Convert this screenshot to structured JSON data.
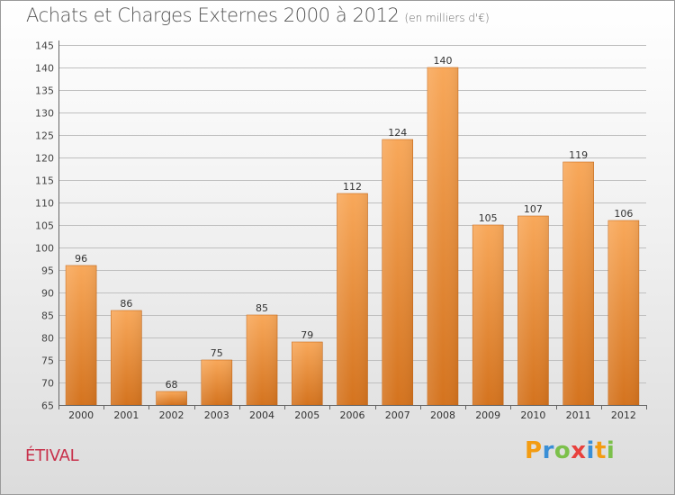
{
  "header": {
    "title": "Achats et Charges Externes 2000 à 2012",
    "unit": "(en milliers d'€)"
  },
  "place": "ÉTIVAL",
  "logo": {
    "letters": [
      "P",
      "r",
      "o",
      "x",
      "i",
      "t",
      "i"
    ],
    "colors": [
      "#f39c12",
      "#3a8fd6",
      "#7cc04b",
      "#e8413d",
      "#3a8fd6",
      "#f39c12",
      "#7cc04b"
    ]
  },
  "colors": {
    "bar_light": "#f8a85a",
    "bar_dark": "#d4731e",
    "bar_edge": "#c96a1a",
    "grid": "#bfbfbf",
    "axis": "#666666"
  },
  "chart_data": {
    "type": "bar",
    "categories": [
      "2000",
      "2001",
      "2002",
      "2003",
      "2004",
      "2005",
      "2006",
      "2007",
      "2008",
      "2009",
      "2010",
      "2011",
      "2012"
    ],
    "values": [
      96,
      86,
      68,
      75,
      85,
      79,
      112,
      124,
      140,
      105,
      107,
      119,
      106
    ],
    "yticks": [
      65,
      70,
      75,
      80,
      85,
      90,
      95,
      100,
      105,
      110,
      115,
      120,
      125,
      130,
      135,
      140,
      145
    ],
    "ylim": [
      65,
      145
    ],
    "grid": true,
    "data_labels": true
  }
}
